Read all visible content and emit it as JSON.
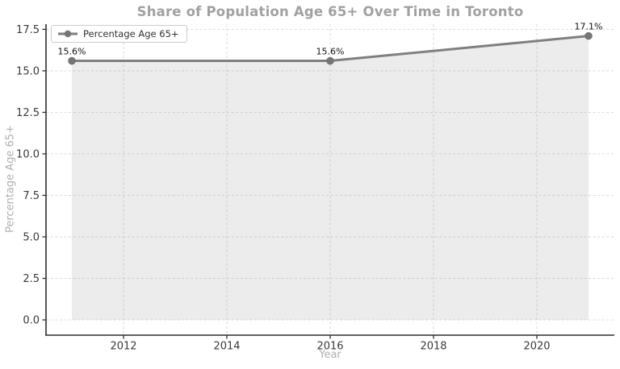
{
  "chart_data": {
    "type": "line",
    "title": "Share of Population Age 65+ Over Time in Toronto",
    "xlabel": "Year",
    "ylabel": "Percentage Age 65+",
    "x": [
      2011,
      2016,
      2021
    ],
    "series": [
      {
        "name": "Percentage Age 65+",
        "values": [
          15.6,
          15.6,
          17.1
        ]
      }
    ],
    "point_labels": [
      "15.6%",
      "15.6%",
      "17.1%"
    ],
    "xticks": {
      "values": [
        2012,
        2014,
        2016,
        2018,
        2020
      ],
      "labels": [
        "2012",
        "2014",
        "2016",
        "2018",
        "2020"
      ]
    },
    "yticks": {
      "values": [
        0,
        2.5,
        5,
        7.5,
        10,
        12.5,
        15,
        17.5
      ],
      "labels": [
        "0.0",
        "2.5",
        "5.0",
        "7.5",
        "10.0",
        "12.5",
        "15.0",
        "17.5"
      ]
    },
    "xlim": [
      2010.5,
      2021.5
    ],
    "ylim": [
      -0.92,
      17.81
    ],
    "grid": {
      "visible": true,
      "style": "dashed"
    },
    "area_fill": {
      "enabled": true,
      "baseline": 0
    },
    "legend": {
      "position": "upper left",
      "entries": [
        "Percentage Age 65+"
      ]
    },
    "colors": {
      "line": "#7f7f7f",
      "marker": "#757575",
      "fill": "#808080",
      "fill_opacity": 0.15,
      "grid": "#d6d6d6",
      "spine": "#2e2e2e",
      "tick_label": "#3a3a3a",
      "title": "#a1a1a1",
      "axis_label": "#b0b0b0",
      "annotation": "#111111"
    }
  }
}
